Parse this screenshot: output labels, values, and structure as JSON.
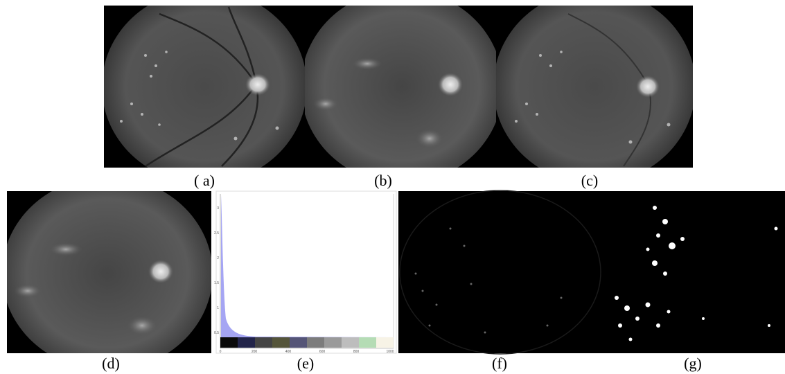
{
  "panels": {
    "a": "( a)",
    "b": "(b)",
    "c": "(c)",
    "d": "(d)",
    "e": "(e)",
    "f": "(f)",
    "g": "(g)"
  },
  "histogram": {
    "y_ticks": [
      "3",
      "2.5",
      "2",
      "1.5",
      "1",
      "0.5"
    ],
    "x_ticks": [
      "0",
      "200",
      "400",
      "600",
      "800",
      "1000"
    ]
  }
}
